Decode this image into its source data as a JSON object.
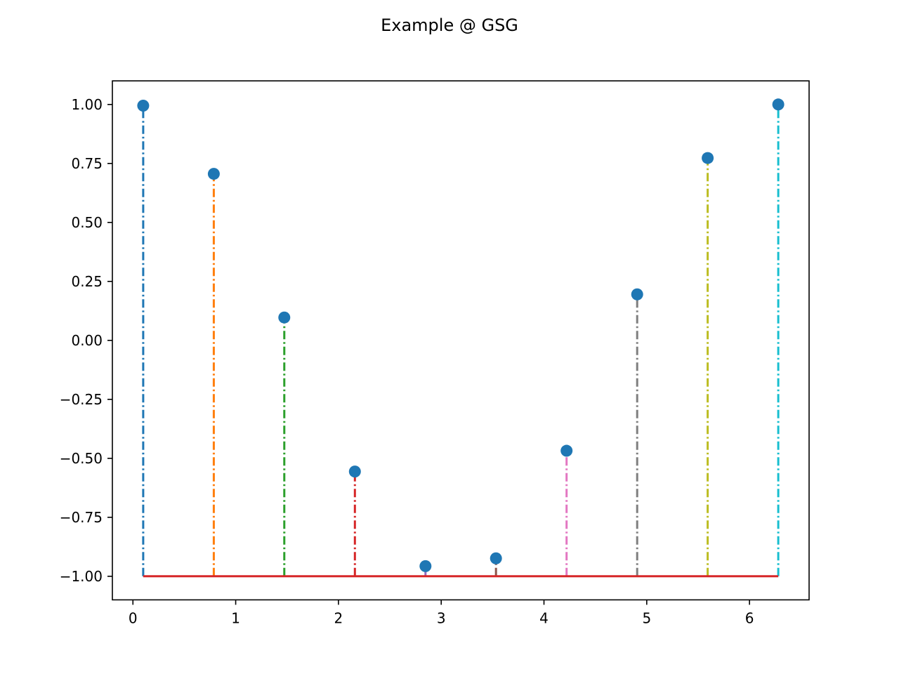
{
  "chart_data": {
    "type": "stem",
    "title": "Example @ GSG",
    "xlabel": "",
    "ylabel": "",
    "xlim": [
      -0.2,
      6.58
    ],
    "ylim": [
      -1.1,
      1.1
    ],
    "xticks": [
      0,
      1,
      2,
      3,
      4,
      5,
      6
    ],
    "xtick_labels": [
      "0",
      "1",
      "2",
      "3",
      "4",
      "5",
      "6"
    ],
    "yticks": [
      1.0,
      0.75,
      0.5,
      0.25,
      0.0,
      -0.25,
      -0.5,
      -0.75,
      -1.0
    ],
    "ytick_labels": [
      "1.00",
      "0.75",
      "0.50",
      "0.25",
      "0.00",
      "−0.25",
      "−0.50",
      "−0.75",
      "−1.00"
    ],
    "baseline": -1.0,
    "grid": false,
    "marker_color": "#1f77b4",
    "baseline_color": "#d62728",
    "stem_linestyle": "dashdot",
    "x": [
      0.1,
      0.787,
      1.473,
      2.16,
      2.847,
      3.533,
      4.22,
      4.907,
      5.593,
      6.28
    ],
    "y": [
      0.995,
      0.706,
      0.097,
      -0.556,
      -0.957,
      -0.924,
      -0.468,
      0.195,
      0.773,
      1.0
    ],
    "stem_colors": [
      "#1f77b4",
      "#ff7f0e",
      "#2ca02c",
      "#d62728",
      "#9467bd",
      "#8c564b",
      "#e377c2",
      "#7f7f7f",
      "#bcbd22",
      "#17becf"
    ]
  }
}
